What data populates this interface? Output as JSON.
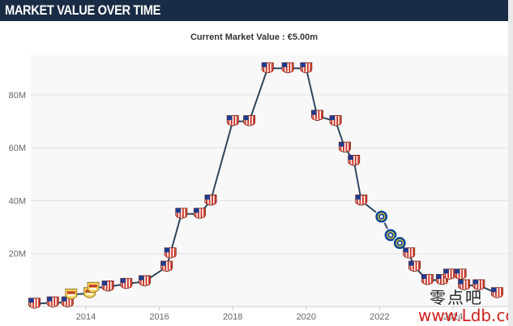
{
  "header": {
    "title": "MARKET VALUE OVER TIME"
  },
  "chart_title": "Current Market Value : €5.00m",
  "watermark": {
    "cn": "零点吧",
    "url": "www.Ldb.cc"
  },
  "colors": {
    "header_bg": "#1a2b45",
    "line": "#2d4760",
    "plot_bg": "#f8f8f8",
    "grid": "#e2e2e2",
    "club_atletico": "#cb3524",
    "club_chelsea": "#034694",
    "club_yellow": "#f2d25a"
  },
  "chart_data": {
    "type": "line",
    "title": "Current Market Value : €5.00m",
    "xlabel": "",
    "ylabel": "",
    "xlim": [
      2012.5,
      2025.5
    ],
    "ylim": [
      0,
      95
    ],
    "x_ticks": [
      2014,
      2016,
      2018,
      2020,
      2022,
      2024
    ],
    "x_tick_labels": [
      "2014",
      "2016",
      "2018",
      "2020",
      "2022",
      "2024"
    ],
    "y_ticks": [
      20,
      40,
      60,
      80
    ],
    "y_tick_labels": [
      "20M",
      "40M",
      "60M",
      "80M"
    ],
    "grid": true,
    "legend": "none",
    "series": [
      {
        "points": [
          {
            "x": 2012.6,
            "y": 1.0,
            "club": "atletico"
          },
          {
            "x": 2013.1,
            "y": 1.5,
            "club": "atletico"
          },
          {
            "x": 2013.5,
            "y": 1.5,
            "club": "atletico"
          },
          {
            "x": 2013.6,
            "y": 4.5,
            "club": "yellow"
          },
          {
            "x": 2014.1,
            "y": 5.0,
            "club": "yellow"
          },
          {
            "x": 2014.2,
            "y": 7.0,
            "club": "yellow"
          },
          {
            "x": 2014.6,
            "y": 7.5,
            "club": "atletico"
          },
          {
            "x": 2015.1,
            "y": 8.5,
            "club": "atletico"
          },
          {
            "x": 2015.6,
            "y": 9.5,
            "club": "atletico"
          },
          {
            "x": 2016.2,
            "y": 15.0,
            "club": "atletico"
          },
          {
            "x": 2016.3,
            "y": 20.0,
            "club": "atletico"
          },
          {
            "x": 2016.6,
            "y": 35.0,
            "club": "atletico"
          },
          {
            "x": 2017.1,
            "y": 35.0,
            "club": "atletico"
          },
          {
            "x": 2017.4,
            "y": 40.0,
            "club": "atletico"
          },
          {
            "x": 2018.0,
            "y": 70.0,
            "club": "atletico"
          },
          {
            "x": 2018.45,
            "y": 70.0,
            "club": "atletico"
          },
          {
            "x": 2018.95,
            "y": 90.0,
            "club": "atletico"
          },
          {
            "x": 2019.5,
            "y": 90.0,
            "club": "atletico"
          },
          {
            "x": 2020.0,
            "y": 90.0,
            "club": "atletico"
          },
          {
            "x": 2020.3,
            "y": 72.0,
            "club": "atletico"
          },
          {
            "x": 2020.8,
            "y": 70.0,
            "club": "atletico"
          },
          {
            "x": 2021.05,
            "y": 60.0,
            "club": "atletico"
          },
          {
            "x": 2021.3,
            "y": 55.0,
            "club": "atletico"
          },
          {
            "x": 2021.5,
            "y": 40.0,
            "club": "atletico"
          },
          {
            "x": 2022.05,
            "y": 34.0,
            "club": "chelsea"
          },
          {
            "x": 2022.3,
            "y": 27.0,
            "club": "chelsea"
          },
          {
            "x": 2022.55,
            "y": 24.0,
            "club": "chelsea"
          },
          {
            "x": 2022.8,
            "y": 20.0,
            "club": "atletico"
          },
          {
            "x": 2022.95,
            "y": 15.0,
            "club": "atletico"
          },
          {
            "x": 2023.3,
            "y": 10.0,
            "club": "atletico"
          },
          {
            "x": 2023.7,
            "y": 10.0,
            "club": "atletico"
          },
          {
            "x": 2023.9,
            "y": 12.0,
            "club": "atletico"
          },
          {
            "x": 2024.2,
            "y": 12.0,
            "club": "atletico"
          },
          {
            "x": 2024.3,
            "y": 8.0,
            "club": "atletico"
          },
          {
            "x": 2024.7,
            "y": 8.0,
            "club": "atletico"
          },
          {
            "x": 2025.2,
            "y": 5.0,
            "club": "atletico"
          }
        ]
      }
    ]
  }
}
